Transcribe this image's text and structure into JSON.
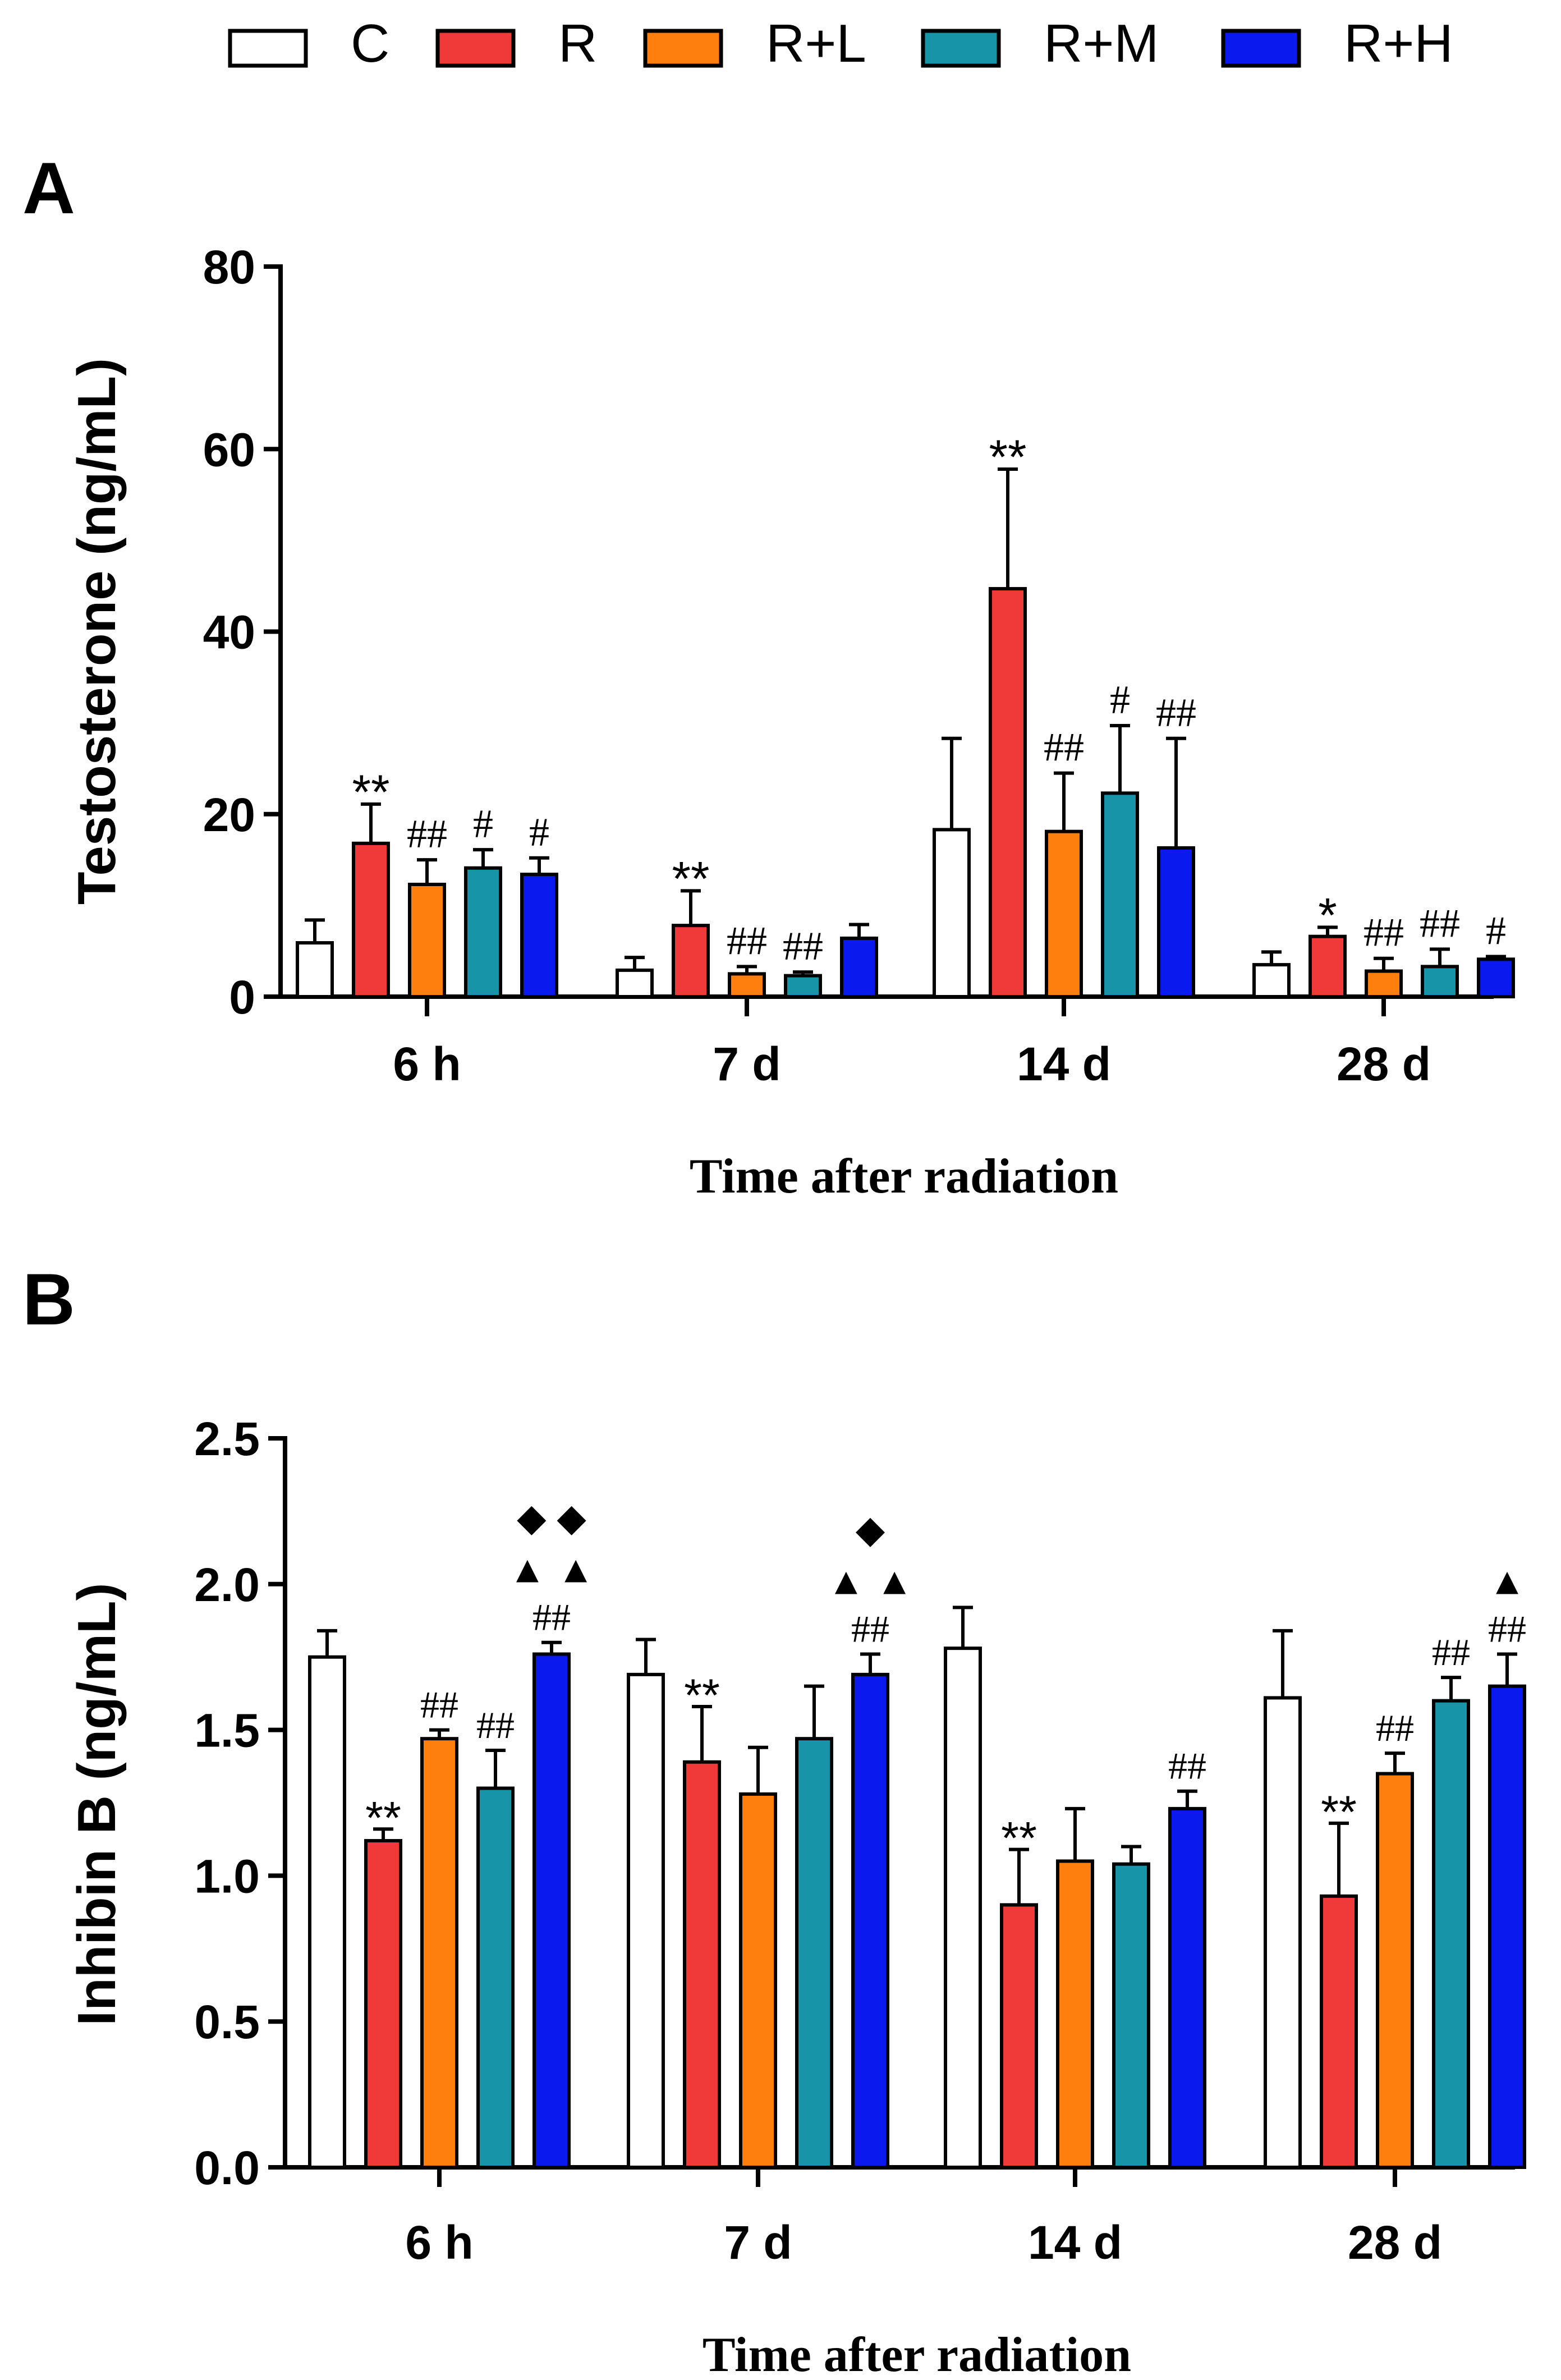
{
  "legend": [
    {
      "label": "C",
      "color": "#ffffff"
    },
    {
      "label": "R",
      "color": "#f03a3a"
    },
    {
      "label": "R+L",
      "color": "#ff7f0e"
    },
    {
      "label": "R+M",
      "color": "#1794a8"
    },
    {
      "label": "R+H",
      "color": "#0a1aee"
    }
  ],
  "chart_data": [
    {
      "panel": "A",
      "type": "bar",
      "title": "",
      "xlabel": "Time after radiation",
      "ylabel": "Testosterone (ng/mL)",
      "ylim": [
        0,
        80
      ],
      "yticks": [
        "0",
        "20",
        "40",
        "60",
        "80"
      ],
      "categories": [
        "6 h",
        "7 d",
        "14 d",
        "28 d"
      ],
      "series": [
        {
          "name": "C",
          "values": [
            5.9,
            2.9,
            18.3,
            3.5
          ],
          "errors": [
            2.5,
            1.4,
            10.0,
            1.4
          ],
          "annotations": [
            "",
            "",
            "",
            ""
          ]
        },
        {
          "name": "R",
          "values": [
            16.8,
            7.8,
            44.7,
            6.6
          ],
          "errors": [
            4.3,
            3.8,
            13.1,
            1.0
          ],
          "annotations": [
            "**",
            "**",
            "**",
            "*"
          ]
        },
        {
          "name": "R+L",
          "values": [
            12.3,
            2.5,
            18.1,
            2.8
          ],
          "errors": [
            2.7,
            0.8,
            6.4,
            1.4
          ],
          "annotations": [
            "##",
            "##",
            "##",
            "##"
          ]
        },
        {
          "name": "R+M",
          "values": [
            14.1,
            2.3,
            22.3,
            3.3
          ],
          "errors": [
            2.0,
            0.4,
            7.4,
            1.9
          ],
          "annotations": [
            "#",
            "##",
            "#",
            "##"
          ]
        },
        {
          "name": "R+H",
          "values": [
            13.4,
            6.4,
            16.3,
            4.1
          ],
          "errors": [
            1.8,
            1.5,
            12.0,
            0.3
          ],
          "annotations": [
            "#",
            "",
            "##",
            "#"
          ]
        }
      ]
    },
    {
      "panel": "B",
      "type": "bar",
      "title": "",
      "xlabel": "Time after radiation",
      "ylabel": "Inhibin B (ng/mL)",
      "ylim": [
        0,
        2.5
      ],
      "yticks": [
        "0.0",
        "0.5",
        "1.0",
        "1.5",
        "2.0",
        "2.5"
      ],
      "categories": [
        "6 h",
        "7 d",
        "14 d",
        "28 d"
      ],
      "series": [
        {
          "name": "C",
          "values": [
            1.75,
            1.69,
            1.78,
            1.61
          ],
          "errors": [
            0.09,
            0.12,
            0.14,
            0.23
          ],
          "annotations": [
            "",
            "",
            "",
            ""
          ]
        },
        {
          "name": "R",
          "values": [
            1.12,
            1.39,
            0.9,
            0.93
          ],
          "errors": [
            0.04,
            0.19,
            0.19,
            0.25
          ],
          "annotations": [
            "**",
            "**",
            "**",
            "**"
          ]
        },
        {
          "name": "R+L",
          "values": [
            1.47,
            1.28,
            1.05,
            1.35
          ],
          "errors": [
            0.03,
            0.16,
            0.18,
            0.07
          ],
          "annotations": [
            "##",
            "",
            "",
            "##"
          ]
        },
        {
          "name": "R+M",
          "values": [
            1.3,
            1.47,
            1.04,
            1.6
          ],
          "errors": [
            0.13,
            0.18,
            0.06,
            0.08
          ],
          "annotations": [
            "##",
            "",
            "",
            "##"
          ]
        },
        {
          "name": "R+H",
          "values": [
            1.76,
            1.69,
            1.23,
            1.65
          ],
          "errors": [
            0.04,
            0.07,
            0.06,
            0.11
          ],
          "annotations": [
            "##",
            "##",
            "##",
            "##"
          ],
          "triangles": [
            "▲ ▲",
            "▲ ▲",
            "",
            "▲"
          ],
          "diamonds": [
            "◆ ◆",
            "◆",
            "",
            ""
          ]
        }
      ]
    }
  ]
}
